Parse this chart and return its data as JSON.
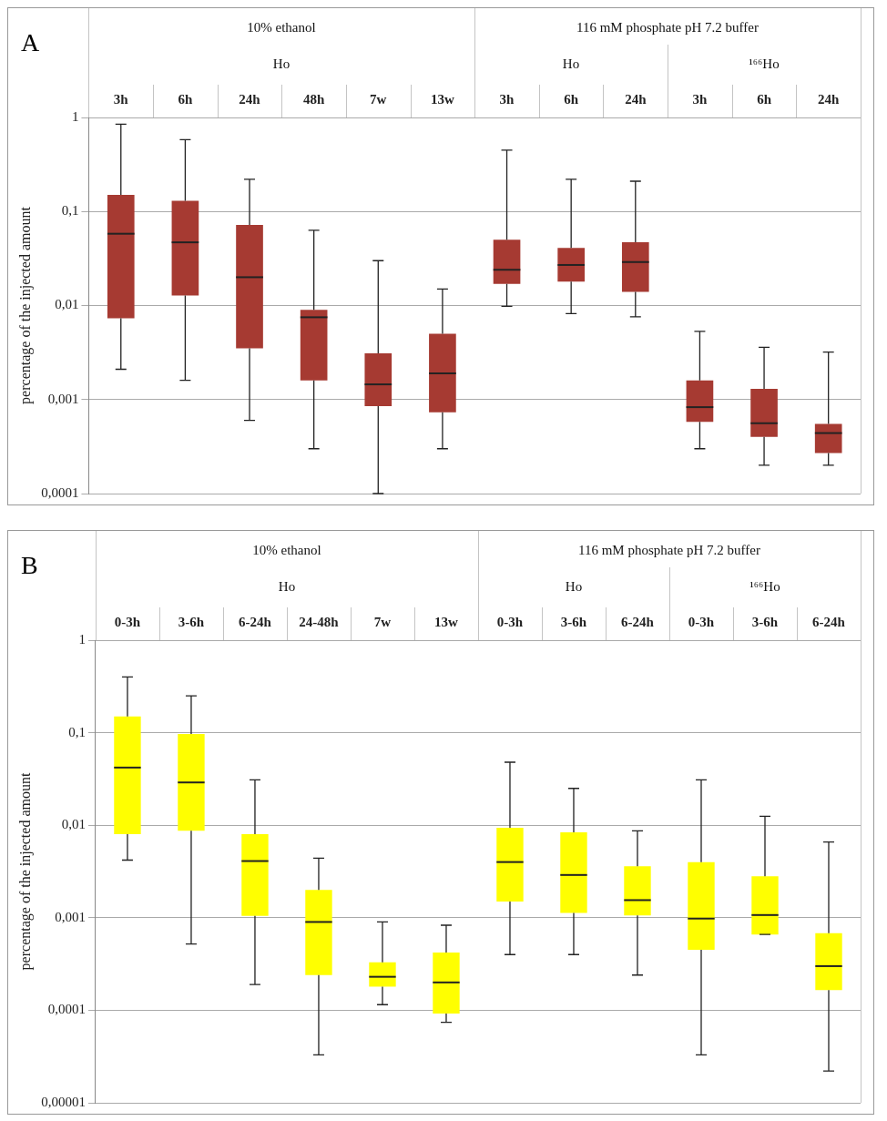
{
  "chart_data": [
    {
      "type": "box",
      "title": "A",
      "ylabel": "percentage of the injected amount",
      "categories": [
        "3h",
        "6h",
        "24h",
        "48h",
        "7w",
        "13w",
        "3h",
        "6h",
        "24h",
        "3h",
        "6h",
        "24h"
      ],
      "annotations": [
        "10% ethanol",
        "Ho",
        "116 mM phosphate pH 7.2 buffer",
        "Ho",
        "¹⁶⁶Ho"
      ],
      "log": "y",
      "grid": "y",
      "legend": false,
      "ylim": [
        0.0001,
        1
      ],
      "yticks": [
        {
          "value": 0.0001,
          "label": "0,0001"
        },
        {
          "value": 0.001,
          "label": "0,001"
        },
        {
          "value": 0.01,
          "label": "0,01"
        },
        {
          "value": 0.1,
          "label": "0,1"
        },
        1
      ],
      "series": [
        {
          "color": "#a63a32",
          "boxes": [
            {
              "low": 0.0021,
              "q1": 0.0073,
              "median": 0.058,
              "q3": 0.15,
              "high": 0.85
            },
            {
              "low": 0.0016,
              "q1": 0.0128,
              "median": 0.047,
              "q3": 0.13,
              "high": 0.58
            },
            {
              "low": 0.0006,
              "q1": 0.0035,
              "median": 0.02,
              "q3": 0.072,
              "high": 0.22
            },
            {
              "low": 0.0003,
              "q1": 0.0016,
              "median": 0.0075,
              "q3": 0.009,
              "high": 0.063
            },
            {
              "low": 0.0001,
              "q1": 0.00085,
              "median": 0.00145,
              "q3": 0.0031,
              "high": 0.03
            },
            {
              "low": 0.0003,
              "q1": 0.00073,
              "median": 0.0019,
              "q3": 0.005,
              "high": 0.015
            },
            {
              "low": 0.0098,
              "q1": 0.017,
              "median": 0.024,
              "q3": 0.05,
              "high": 0.45
            },
            {
              "low": 0.0082,
              "q1": 0.018,
              "median": 0.027,
              "q3": 0.041,
              "high": 0.22
            },
            {
              "low": 0.0076,
              "q1": 0.014,
              "median": 0.029,
              "q3": 0.047,
              "high": 0.21
            },
            {
              "low": 0.0003,
              "q1": 0.00058,
              "median": 0.00083,
              "q3": 0.0016,
              "high": 0.0053
            },
            {
              "low": 0.0002,
              "q1": 0.0004,
              "median": 0.00056,
              "q3": 0.0013,
              "high": 0.0036
            },
            {
              "low": 0.0002,
              "q1": 0.00027,
              "median": 0.00044,
              "q3": 0.00055,
              "high": 0.0032
            }
          ]
        }
      ]
    },
    {
      "type": "box",
      "title": "B",
      "ylabel": "percentage of the injected amount",
      "categories": [
        "0-3h",
        "3-6h",
        "6-24h",
        "24-48h",
        "7w",
        "13w",
        "0-3h",
        "3-6h",
        "6-24h",
        "0-3h",
        "3-6h",
        "6-24h"
      ],
      "annotations": [
        "10% ethanol",
        "Ho",
        "116 mM phosphate pH 7.2 buffer",
        "Ho",
        "¹⁶⁶Ho"
      ],
      "log": "y",
      "grid": "y",
      "legend": false,
      "ylim": [
        1e-05,
        1
      ],
      "yticks": [
        {
          "value": 1e-05,
          "label": "0,00001"
        },
        {
          "value": 0.0001,
          "label": "0,0001"
        },
        {
          "value": 0.001,
          "label": "0,001"
        },
        {
          "value": 0.01,
          "label": "0,01"
        },
        {
          "value": 0.1,
          "label": "0,1"
        },
        1
      ],
      "series": [
        {
          "color": "#ffff00",
          "boxes": [
            {
              "low": 0.0042,
              "q1": 0.008,
              "median": 0.042,
              "q3": 0.15,
              "high": 0.4
            },
            {
              "low": 0.00052,
              "q1": 0.0087,
              "median": 0.029,
              "q3": 0.097,
              "high": 0.25
            },
            {
              "low": 0.00019,
              "q1": 0.00105,
              "median": 0.0041,
              "q3": 0.008,
              "high": 0.031
            },
            {
              "low": 3.3e-05,
              "q1": 0.00024,
              "median": 0.0009,
              "q3": 0.002,
              "high": 0.0044
            },
            {
              "low": 0.000115,
              "q1": 0.00018,
              "median": 0.00023,
              "q3": 0.00033,
              "high": 0.0009
            },
            {
              "low": 7.4e-05,
              "q1": 9.2e-05,
              "median": 0.0002,
              "q3": 0.00042,
              "high": 0.00083
            },
            {
              "low": 0.0004,
              "q1": 0.0015,
              "median": 0.004,
              "q3": 0.0094,
              "high": 0.048
            },
            {
              "low": 0.0004,
              "q1": 0.00113,
              "median": 0.0029,
              "q3": 0.0084,
              "high": 0.025
            },
            {
              "low": 0.00024,
              "q1": 0.00106,
              "median": 0.00155,
              "q3": 0.0036,
              "high": 0.0087
            },
            {
              "low": 3.3e-05,
              "q1": 0.00045,
              "median": 0.00098,
              "q3": 0.004,
              "high": 0.031
            },
            {
              "low": 0.00066,
              "q1": 0.00066,
              "median": 0.00107,
              "q3": 0.0028,
              "high": 0.0125
            },
            {
              "low": 2.2e-05,
              "q1": 0.000165,
              "median": 0.0003,
              "q3": 0.00068,
              "high": 0.0066
            }
          ]
        }
      ]
    }
  ]
}
